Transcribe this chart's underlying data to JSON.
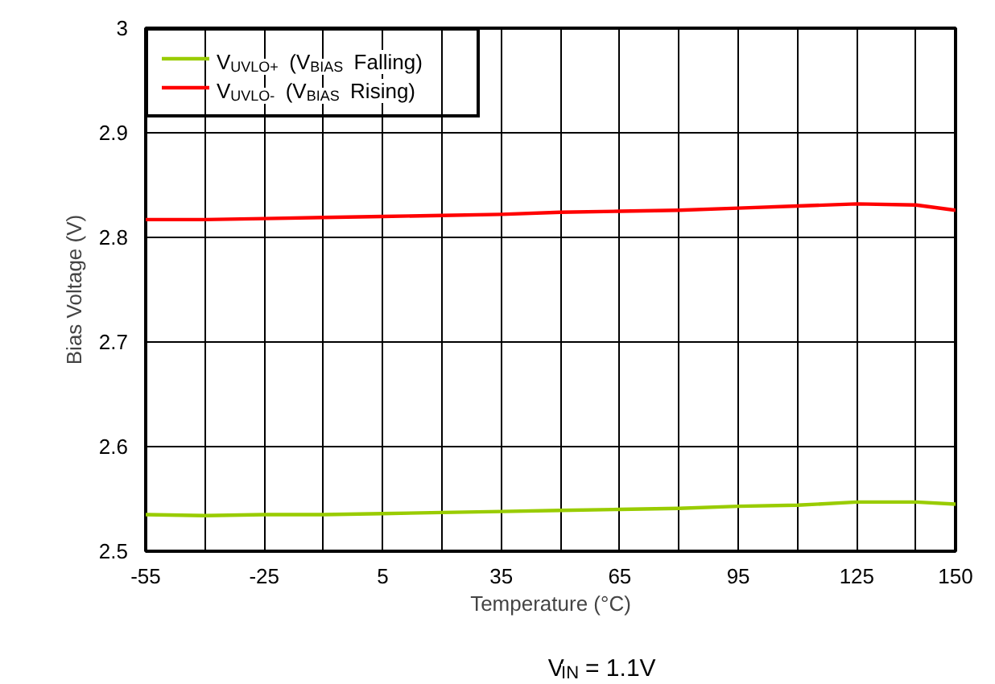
{
  "chart_data": {
    "type": "line",
    "xlabel": "Temperature (°C)",
    "ylabel": "Bias Voltage (V)",
    "x": [
      -55,
      -40,
      -25,
      -10,
      5,
      20,
      35,
      50,
      65,
      80,
      95,
      110,
      125,
      140,
      150
    ],
    "series": [
      {
        "name": "V$_{UVLO+}$ (V$_{BIAS}$ Falling)",
        "color": "#99cc00",
        "values": [
          2.535,
          2.534,
          2.535,
          2.535,
          2.536,
          2.537,
          2.538,
          2.539,
          2.54,
          2.541,
          2.543,
          2.544,
          2.547,
          2.547,
          2.545
        ]
      },
      {
        "name": "V$_{UVLO-}$ (V$_{BIAS}$ Rising)",
        "color": "#ff0000",
        "values": [
          2.817,
          2.817,
          2.818,
          2.819,
          2.82,
          2.821,
          2.822,
          2.824,
          2.825,
          2.826,
          2.828,
          2.83,
          2.832,
          2.831,
          2.826
        ]
      }
    ],
    "xlim": [
      -55,
      150
    ],
    "ylim": [
      2.5,
      3
    ],
    "xticks": [
      -55,
      {
        "value": -40,
        "label": null
      },
      -25,
      {
        "value": -10,
        "label": null
      },
      5,
      {
        "value": 20,
        "label": null
      },
      35,
      {
        "value": 50,
        "label": null
      },
      65,
      {
        "value": 80,
        "label": null
      },
      95,
      {
        "value": 110,
        "label": null
      },
      125,
      {
        "value": 140,
        "label": null
      },
      150
    ],
    "yticks": [
      2.5,
      2.6,
      2.7,
      2.8,
      2.9,
      3
    ],
    "grid": true,
    "legend": "top left",
    "marker": "none",
    "line_style": "solid",
    "annotations": [
      "V$_{IN}$ = 1.1V"
    ]
  }
}
